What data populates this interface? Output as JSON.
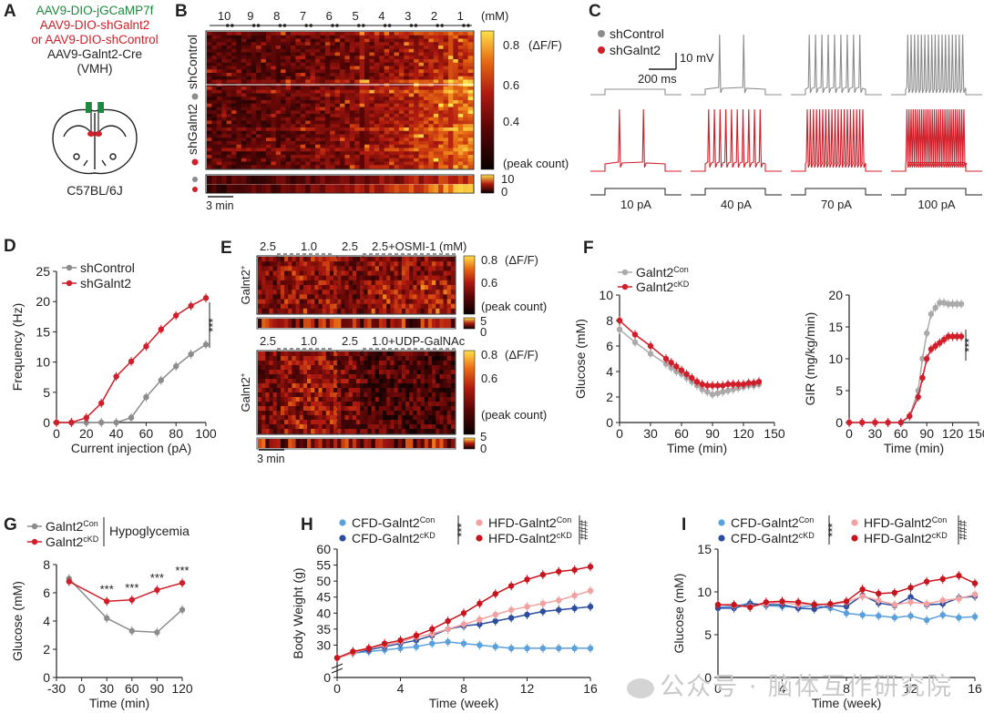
{
  "colors": {
    "control": "#8c8c8c",
    "kd": "#d01f2a",
    "cfd_con": "#5aa0dc",
    "cfd_kd": "#2a4da0",
    "hfd_con": "#f2a0a0",
    "hfd_kd": "#c8141c"
  },
  "watermark": "公众号 · 脑体互作研究院",
  "panels": {
    "A": {
      "letter": "A",
      "lines": [
        {
          "text": "AAV9-DIO-jGCaMP7f",
          "color": "#1a8a3c"
        },
        {
          "text": "AAV9-DIO-shGalnt2",
          "color": "#d01f2a"
        },
        {
          "text": "or AAV9-DIO-shControl",
          "color": "#d01f2a"
        },
        {
          "text": "AAV9-Galnt2-Cre",
          "color": "#222222"
        },
        {
          "text": "(VMH)",
          "color": "#222222"
        }
      ],
      "mouse": "C57BL/6J"
    },
    "B": {
      "letter": "B",
      "conc_labels": [
        "10",
        "9",
        "8",
        "7",
        "6",
        "5",
        "4",
        "3",
        "2",
        "1"
      ],
      "conc_unit": "(mM)",
      "row_label_top": "shControl",
      "row_label_bottom": "shGalnt2",
      "cbar_ticks": [
        "0.8",
        "0.6",
        "0.4"
      ],
      "cbar_unit": "(ΔF/F)",
      "peak_label": "(peak count)",
      "peak_ticks": [
        "10",
        "0"
      ],
      "scale": "3 min"
    },
    "C": {
      "letter": "C",
      "legend": [
        {
          "name": "shControl",
          "color": "#8c8c8c"
        },
        {
          "name": "shGalnt2",
          "color": "#d01f2a"
        }
      ],
      "scale_v": "10 mV",
      "scale_t": "200 ms",
      "currents": [
        "10 pA",
        "40 pA",
        "70 pA",
        "100 pA"
      ],
      "spikes_control": [
        0,
        2,
        9,
        17
      ],
      "spikes_kd": [
        2,
        10,
        19,
        28
      ]
    }
  },
  "chart_data": [
    {
      "id": "D",
      "type": "line",
      "letter": "D",
      "xlabel": "Current injection (pA)",
      "ylabel": "Frequency (Hz)",
      "xlim": [
        0,
        100
      ],
      "ylim": [
        0,
        25
      ],
      "xticks": [
        0,
        20,
        40,
        60,
        80,
        100
      ],
      "yticks": [
        0,
        5,
        10,
        15,
        20,
        25
      ],
      "legend": "top-left",
      "sig": "***",
      "x": [
        0,
        10,
        20,
        30,
        40,
        50,
        60,
        70,
        80,
        90,
        100
      ],
      "series": [
        {
          "name": "shControl",
          "color": "#8c8c8c",
          "values": [
            0,
            0,
            0,
            0,
            0,
            0.8,
            4.2,
            7.0,
            9.3,
            11.3,
            12.9
          ]
        },
        {
          "name": "shGalnt2",
          "color": "#d01f2a",
          "values": [
            0,
            0,
            0.8,
            3.2,
            7.6,
            10.1,
            12.6,
            15.4,
            17.7,
            19.3,
            20.6
          ]
        }
      ]
    },
    {
      "id": "F1",
      "type": "line",
      "letter": "F",
      "xlabel": "Time (min)",
      "ylabel": "Glucose (mM)",
      "xlim": [
        0,
        150
      ],
      "ylim": [
        0,
        10
      ],
      "xticks": [
        0,
        30,
        60,
        90,
        120,
        150
      ],
      "yticks": [
        0,
        2,
        4,
        6,
        8,
        10
      ],
      "legend": "top-left",
      "series": [
        {
          "name": "Galnt2",
          "sup": "Con",
          "color": "#aaaaaa",
          "x": [
            0,
            15,
            30,
            45,
            50,
            55,
            60,
            65,
            70,
            75,
            80,
            85,
            90,
            95,
            100,
            105,
            110,
            115,
            120,
            125,
            130,
            135
          ],
          "values": [
            7.3,
            6.3,
            5.4,
            4.6,
            4.3,
            4.0,
            3.8,
            3.5,
            3.2,
            2.9,
            2.6,
            2.4,
            2.2,
            2.3,
            2.4,
            2.5,
            2.6,
            2.7,
            2.8,
            2.9,
            2.9,
            3.0
          ]
        },
        {
          "name": "Galnt2",
          "sup": "cKD",
          "color": "#d01f2a",
          "x": [
            0,
            15,
            30,
            45,
            50,
            55,
            60,
            65,
            70,
            75,
            80,
            85,
            90,
            95,
            100,
            105,
            110,
            115,
            120,
            125,
            130,
            135
          ],
          "values": [
            8.0,
            6.9,
            6.0,
            5.0,
            4.7,
            4.4,
            4.1,
            3.8,
            3.5,
            3.2,
            3.0,
            2.9,
            2.9,
            2.9,
            2.9,
            3.0,
            3.0,
            3.0,
            3.0,
            3.1,
            3.1,
            3.2
          ]
        }
      ]
    },
    {
      "id": "F2",
      "type": "line",
      "xlabel": "Time (min)",
      "ylabel": "GIR (mg/kg/min)",
      "xlim": [
        0,
        150
      ],
      "ylim": [
        0,
        20
      ],
      "xticks": [
        0,
        30,
        60,
        90,
        120,
        150
      ],
      "yticks": [
        0,
        5,
        10,
        15,
        20
      ],
      "sig": "***",
      "series": [
        {
          "name": "Galnt2",
          "sup": "Con",
          "color": "#aaaaaa",
          "x": [
            0,
            15,
            30,
            45,
            60,
            70,
            80,
            85,
            90,
            95,
            100,
            105,
            110,
            115,
            120,
            125,
            130
          ],
          "values": [
            0,
            0,
            0,
            0,
            0,
            1.0,
            5.0,
            10.0,
            14.0,
            17.0,
            18.0,
            18.8,
            18.8,
            18.6,
            18.6,
            18.6,
            18.6
          ]
        },
        {
          "name": "Galnt2",
          "sup": "cKD",
          "color": "#d01f2a",
          "x": [
            0,
            15,
            30,
            45,
            60,
            70,
            80,
            85,
            90,
            95,
            100,
            105,
            110,
            115,
            120,
            125,
            130
          ],
          "values": [
            0,
            0,
            0,
            0,
            0,
            1.0,
            4.0,
            7.0,
            10.0,
            11.5,
            12.0,
            12.5,
            13.0,
            13.5,
            13.5,
            13.5,
            13.5
          ]
        }
      ]
    },
    {
      "id": "G",
      "type": "line",
      "letter": "G",
      "xlabel": "Time (min)",
      "ylabel": "Glucose (mM)",
      "xlim": [
        -30,
        120
      ],
      "ylim": [
        0,
        8
      ],
      "xticks": [
        -30,
        0,
        30,
        60,
        90,
        120
      ],
      "yticks": [
        0,
        2,
        4,
        6,
        8
      ],
      "legend": "top-left",
      "legend_note": "Hypoglycemia",
      "annotations": [
        {
          "x": 30,
          "text": "***"
        },
        {
          "x": 60,
          "text": "***"
        },
        {
          "x": 90,
          "text": "***"
        },
        {
          "x": 120,
          "text": "***"
        }
      ],
      "x": [
        -15,
        30,
        60,
        90,
        120
      ],
      "series": [
        {
          "name": "Galnt2",
          "sup": "Con",
          "color": "#8c8c8c",
          "values": [
            7.0,
            4.2,
            3.3,
            3.2,
            4.8
          ]
        },
        {
          "name": "Galnt2",
          "sup": "cKD",
          "color": "#d01f2a",
          "values": [
            6.8,
            5.4,
            5.5,
            6.2,
            6.7
          ]
        }
      ]
    },
    {
      "id": "H",
      "type": "line",
      "letter": "H",
      "xlabel": "Time (week)",
      "ylabel": "Body Weight (g)",
      "xlim": [
        0,
        16
      ],
      "ylim": [
        0,
        60
      ],
      "xticks": [
        0,
        4,
        8,
        12,
        16
      ],
      "yticks": [
        0,
        30,
        35,
        40,
        45,
        50,
        55,
        60
      ],
      "legend": "top",
      "sig_cfd": "***",
      "sig_hfd": "###",
      "x": [
        0,
        1,
        2,
        3,
        4,
        5,
        6,
        7,
        8,
        9,
        10,
        11,
        12,
        13,
        14,
        15,
        16
      ],
      "series": [
        {
          "name": "CFD-Galnt2",
          "sup": "Con",
          "color": "#5aa0dc",
          "values": [
            26.0,
            27.5,
            28.0,
            28.5,
            29.0,
            29.5,
            30.5,
            31.0,
            30.5,
            30.0,
            29.5,
            29.0,
            29.0,
            29.0,
            29.0,
            29.0,
            29.0
          ]
        },
        {
          "name": "CFD-Galnt2",
          "sup": "cKD",
          "color": "#2a4da0",
          "values": [
            26.0,
            27.5,
            28.5,
            29.5,
            30.5,
            31.5,
            33.0,
            35.0,
            36.0,
            36.5,
            37.5,
            38.5,
            39.5,
            40.5,
            41.0,
            41.5,
            42.0
          ]
        },
        {
          "name": "HFD-Galnt2",
          "sup": "Con",
          "color": "#f2a0a0",
          "values": [
            26.0,
            27.5,
            29.0,
            30.0,
            31.0,
            32.5,
            33.5,
            35.0,
            36.5,
            38.0,
            39.5,
            41.0,
            42.0,
            43.0,
            44.0,
            45.5,
            47.0
          ]
        },
        {
          "name": "HFD-Galnt2",
          "sup": "cKD",
          "color": "#c8141c",
          "values": [
            26.0,
            28.0,
            29.0,
            30.5,
            31.5,
            33.0,
            35.0,
            37.5,
            40.0,
            43.0,
            46.0,
            48.5,
            50.5,
            52.0,
            53.0,
            53.5,
            54.5
          ]
        }
      ]
    },
    {
      "id": "I",
      "type": "line",
      "letter": "I",
      "xlabel": "Time (week)",
      "ylabel": "Glucose (mM)",
      "xlim": [
        0,
        16
      ],
      "ylim": [
        0,
        15
      ],
      "xticks": [
        0,
        4,
        8,
        12,
        16
      ],
      "yticks": [
        0,
        5,
        10,
        15
      ],
      "legend": "top",
      "sig_cfd": "***",
      "sig_hfd": "###",
      "x": [
        0,
        1,
        2,
        3,
        4,
        5,
        6,
        7,
        8,
        9,
        10,
        11,
        12,
        13,
        14,
        15,
        16
      ],
      "series": [
        {
          "name": "CFD-Galnt2",
          "sup": "Con",
          "color": "#5aa0dc",
          "values": [
            8.2,
            8.3,
            8.7,
            8.4,
            8.3,
            8.2,
            8.4,
            8.1,
            7.5,
            7.3,
            7.2,
            7.0,
            7.2,
            6.7,
            7.3,
            7.0,
            7.1
          ]
        },
        {
          "name": "CFD-Galnt2",
          "sup": "cKD",
          "color": "#2a4da0",
          "values": [
            8.1,
            8.1,
            8.6,
            8.5,
            8.5,
            8.1,
            8.0,
            8.4,
            8.3,
            9.6,
            8.7,
            8.4,
            9.4,
            8.5,
            8.6,
            9.3,
            9.5
          ]
        },
        {
          "name": "HFD-Galnt2",
          "sup": "Con",
          "color": "#f2a0a0",
          "values": [
            8.5,
            8.4,
            8.3,
            8.6,
            8.8,
            8.5,
            8.6,
            8.5,
            8.8,
            9.5,
            9.0,
            8.5,
            8.8,
            8.6,
            9.0,
            9.2,
            9.7
          ]
        },
        {
          "name": "HFD-Galnt2",
          "sup": "cKD",
          "color": "#c8141c",
          "values": [
            8.5,
            8.5,
            8.2,
            8.8,
            8.9,
            8.8,
            8.5,
            8.6,
            8.9,
            10.3,
            9.8,
            9.9,
            10.5,
            11.2,
            11.5,
            11.9,
            11.0
          ]
        }
      ]
    },
    {
      "id": "E",
      "type": "heatmap",
      "letter": "E",
      "top": {
        "ylabel": "Galnt2",
        "conc_labels": [
          "2.5",
          "1.0",
          "2.5",
          "2.5+OSMI-1 (mM)"
        ],
        "cbar_ticks": [
          "0.8",
          "0.6"
        ],
        "cbar_unit": "(ΔF/F)",
        "peak_label": "(peak count)",
        "peak_ticks": [
          "5",
          "0"
        ]
      },
      "bottom": {
        "ylabel": "Galnt2",
        "conc_labels": [
          "2.5",
          "1.0",
          "2.5",
          "1.0+UDP-GalNAc"
        ],
        "cbar_ticks": [
          "0.8",
          "0.6"
        ],
        "cbar_unit": "(ΔF/F)",
        "peak_label": "(peak count)",
        "peak_ticks": [
          "5",
          "0"
        ]
      },
      "scale": "3 min"
    }
  ]
}
